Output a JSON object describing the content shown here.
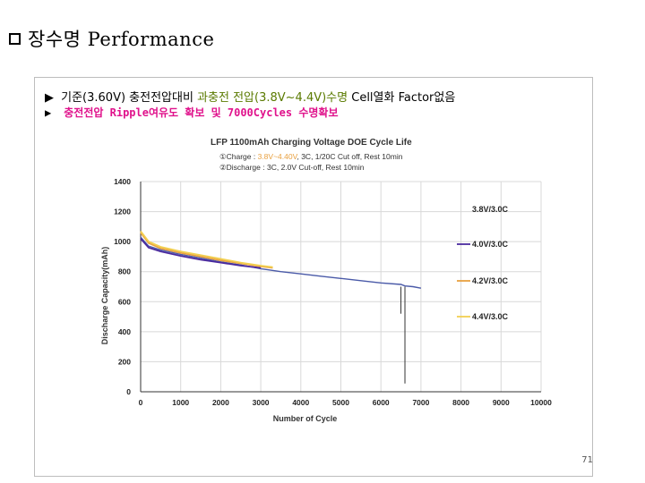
{
  "slide": {
    "title": "장수명 Performance",
    "bullet1": {
      "arrow": "▶",
      "plain": "기준(3.60V) 충전전압대비 ",
      "highlight": "과충전 전압(3.8V~4.4V)수명",
      "tail": " Cell열화 Factor없음"
    },
    "bullet2": {
      "arrow": "▶",
      "text": "충전전압 Ripple여유도 확보 및 7000Cycles 수명확보"
    },
    "page_number": "71"
  },
  "chart_data": {
    "type": "line",
    "title": "LFP 1100mAh Charging Voltage DOE Cycle Life",
    "subtitle_lines": [
      {
        "prefix": "①Charge : ",
        "highlight": "3.8V~4.40V",
        "rest": ", 3C, 1/20C Cut off, Rest 10min"
      },
      {
        "prefix": "②Discharge : ",
        "highlight": "",
        "rest": "3C, 2.0V Cut-off, Rest 10min"
      }
    ],
    "xlabel": "Number of Cycle",
    "ylabel": "Discharge Capacity(mAh)",
    "xlim": [
      0,
      10000
    ],
    "ylim": [
      0,
      1400
    ],
    "xticks": [
      0,
      1000,
      2000,
      3000,
      4000,
      5000,
      6000,
      7000,
      8000,
      9000,
      10000
    ],
    "yticks": [
      0,
      200,
      400,
      600,
      800,
      1000,
      1200,
      1400
    ],
    "legend_position": "right",
    "series": [
      {
        "name": "3.8V/3.0C",
        "color": "#4a5aa8",
        "x": [
          0,
          200,
          500,
          1000,
          1500,
          2000,
          2500,
          3000,
          3500,
          4000,
          4500,
          5000,
          5500,
          6000,
          6500,
          6600,
          6800,
          7000
        ],
        "y": [
          1030,
          970,
          945,
          915,
          890,
          865,
          845,
          820,
          800,
          785,
          770,
          755,
          740,
          725,
          715,
          705,
          700,
          690
        ]
      },
      {
        "name": "4.0V/3.0C",
        "color": "#4b2a9e",
        "x": [
          0,
          200,
          500,
          1000,
          1500,
          2000,
          2500,
          3000
        ],
        "y": [
          1020,
          960,
          935,
          905,
          880,
          860,
          840,
          825
        ]
      },
      {
        "name": "4.2V/3.0C",
        "color": "#e8a040",
        "x": [
          0,
          200,
          500,
          1000,
          1500,
          2000,
          2500,
          3000,
          3300
        ],
        "y": [
          1060,
          990,
          955,
          925,
          900,
          875,
          855,
          835,
          825
        ]
      },
      {
        "name": "4.4V/3.0C",
        "color": "#f2d050",
        "x": [
          0,
          200,
          500,
          1000,
          1500,
          2000,
          2500,
          3000,
          3300
        ],
        "y": [
          1070,
          1000,
          965,
          935,
          910,
          885,
          860,
          840,
          830
        ]
      }
    ],
    "annotations": [
      {
        "x": 6600,
        "y_from": 700,
        "y_to": 55,
        "color": "#333333"
      }
    ]
  }
}
